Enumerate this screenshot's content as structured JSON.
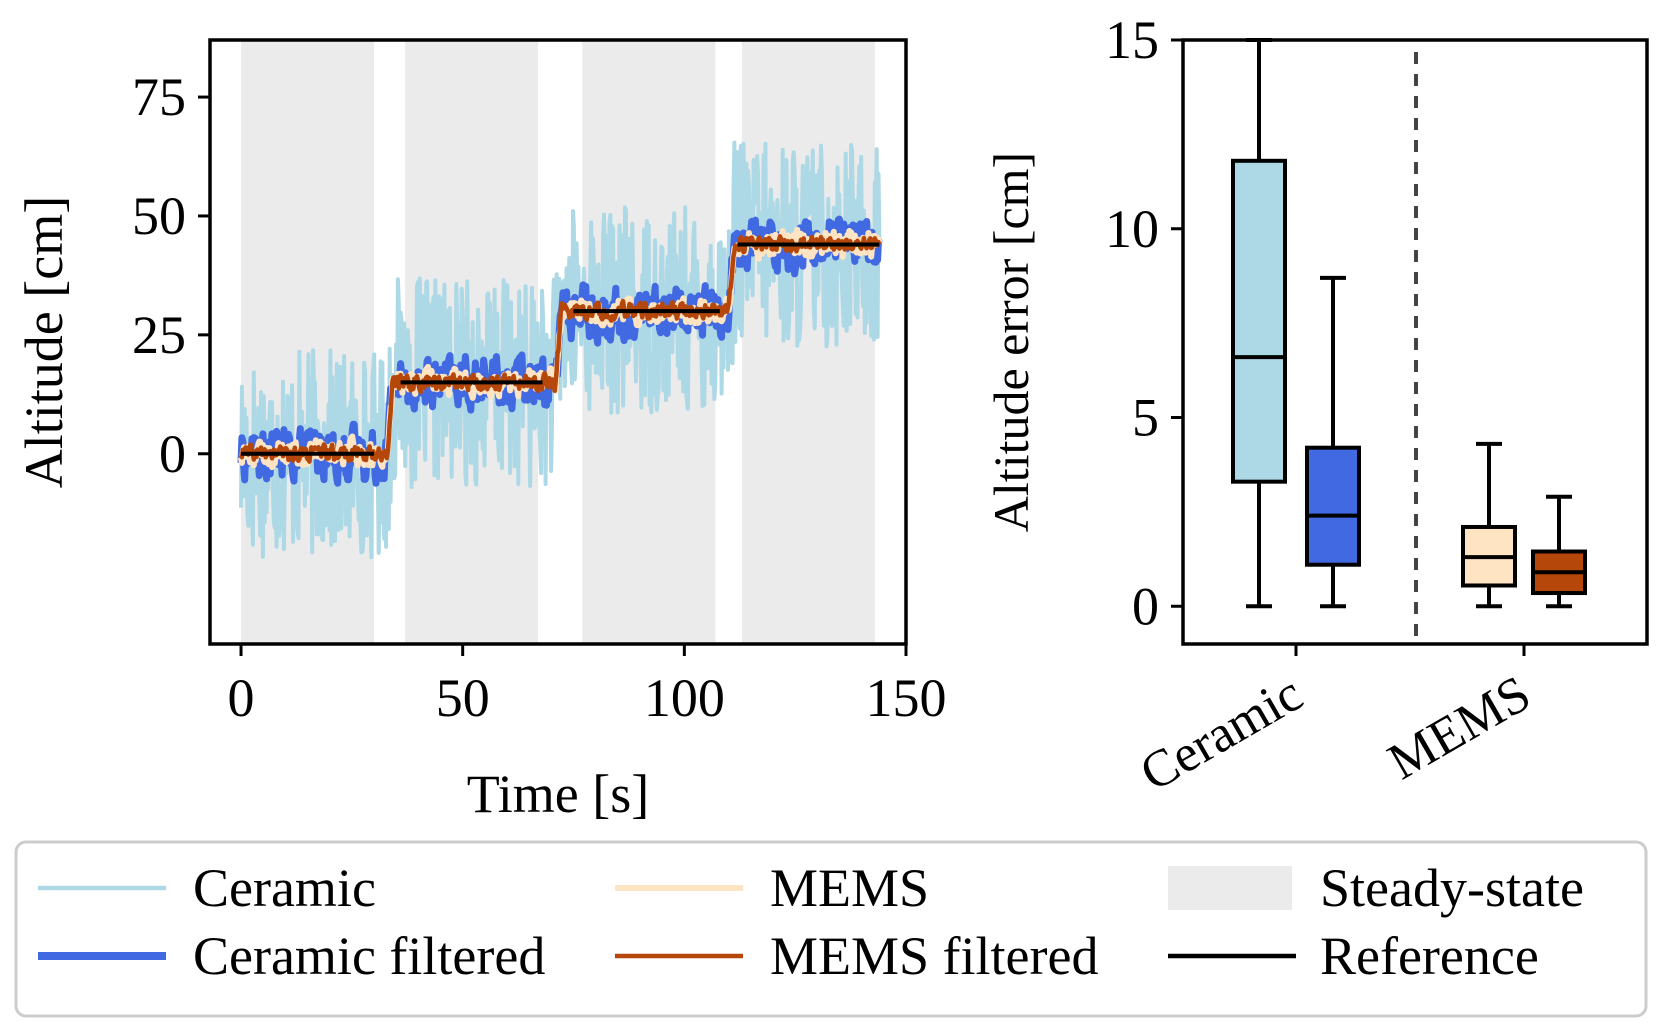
{
  "colors": {
    "ceramic": "#add8e6",
    "ceramic_filtered": "#4169e1",
    "mems": "#ffe4c4",
    "mems_filtered": "#b5470a",
    "steady_state": "#ebebeb",
    "reference": "#000000"
  },
  "chart_data": [
    {
      "type": "line",
      "xlabel": "Time [s]",
      "ylabel": "Altitude [cm]",
      "xlim": [
        -7,
        150
      ],
      "ylim": [
        -40,
        87
      ],
      "xticks": [
        0,
        50,
        100,
        150
      ],
      "yticks": [
        0,
        25,
        50,
        75
      ],
      "grid": false,
      "steady_state_intervals": [
        [
          0,
          30
        ],
        [
          37,
          67
        ],
        [
          77,
          107
        ],
        [
          113,
          143
        ]
      ],
      "reference": [
        {
          "x": [
            0,
            30
          ],
          "y": 0
        },
        {
          "x": [
            36,
            68
          ],
          "y": 15
        },
        {
          "x": [
            75,
            108
          ],
          "y": 30
        },
        {
          "x": [
            112,
            144
          ],
          "y": 44
        }
      ],
      "series": [
        {
          "name": "Ceramic",
          "levels": [
            0,
            15,
            30,
            44
          ],
          "noise_amplitude": 22
        },
        {
          "name": "Ceramic filtered",
          "levels": [
            0,
            15,
            30,
            44
          ],
          "noise_amplitude": 8
        },
        {
          "name": "MEMS",
          "levels": [
            0,
            15,
            30,
            44
          ],
          "noise_amplitude": 4
        },
        {
          "name": "MEMS filtered",
          "levels": [
            0,
            15,
            30,
            44
          ],
          "noise_amplitude": 2.5
        }
      ],
      "step_times": [
        33,
        71,
        110
      ],
      "t_end": 144
    },
    {
      "type": "box",
      "ylabel": "Altitude error [cm]",
      "ylim": [
        -1,
        15
      ],
      "yticks": [
        0,
        5,
        10,
        15
      ],
      "categories": [
        "Ceramic",
        "MEMS"
      ],
      "boxes": [
        {
          "series": "Ceramic",
          "group": "Ceramic",
          "whisker_low": 0,
          "q1": 3.3,
          "median": 6.6,
          "q3": 11.8,
          "whisker_high": 15
        },
        {
          "series": "Ceramic filtered",
          "group": "Ceramic",
          "whisker_low": 0,
          "q1": 1.1,
          "median": 2.4,
          "q3": 4.2,
          "whisker_high": 8.7
        },
        {
          "series": "MEMS",
          "group": "MEMS",
          "whisker_low": 0,
          "q1": 0.55,
          "median": 1.3,
          "q3": 2.1,
          "whisker_high": 4.3
        },
        {
          "series": "MEMS filtered",
          "group": "MEMS",
          "whisker_low": 0,
          "q1": 0.35,
          "median": 0.9,
          "q3": 1.45,
          "whisker_high": 2.9
        }
      ]
    }
  ],
  "legend": {
    "placement": "bottom",
    "items": [
      {
        "label": "Ceramic",
        "kind": "line",
        "color_key": "ceramic"
      },
      {
        "label": "MEMS",
        "kind": "line",
        "color_key": "mems"
      },
      {
        "label": "Steady-state",
        "kind": "patch",
        "color_key": "steady_state"
      },
      {
        "label": "Ceramic filtered",
        "kind": "line",
        "color_key": "ceramic_filtered"
      },
      {
        "label": "MEMS filtered",
        "kind": "line",
        "color_key": "mems_filtered"
      },
      {
        "label": "Reference",
        "kind": "line",
        "color_key": "reference"
      }
    ]
  }
}
